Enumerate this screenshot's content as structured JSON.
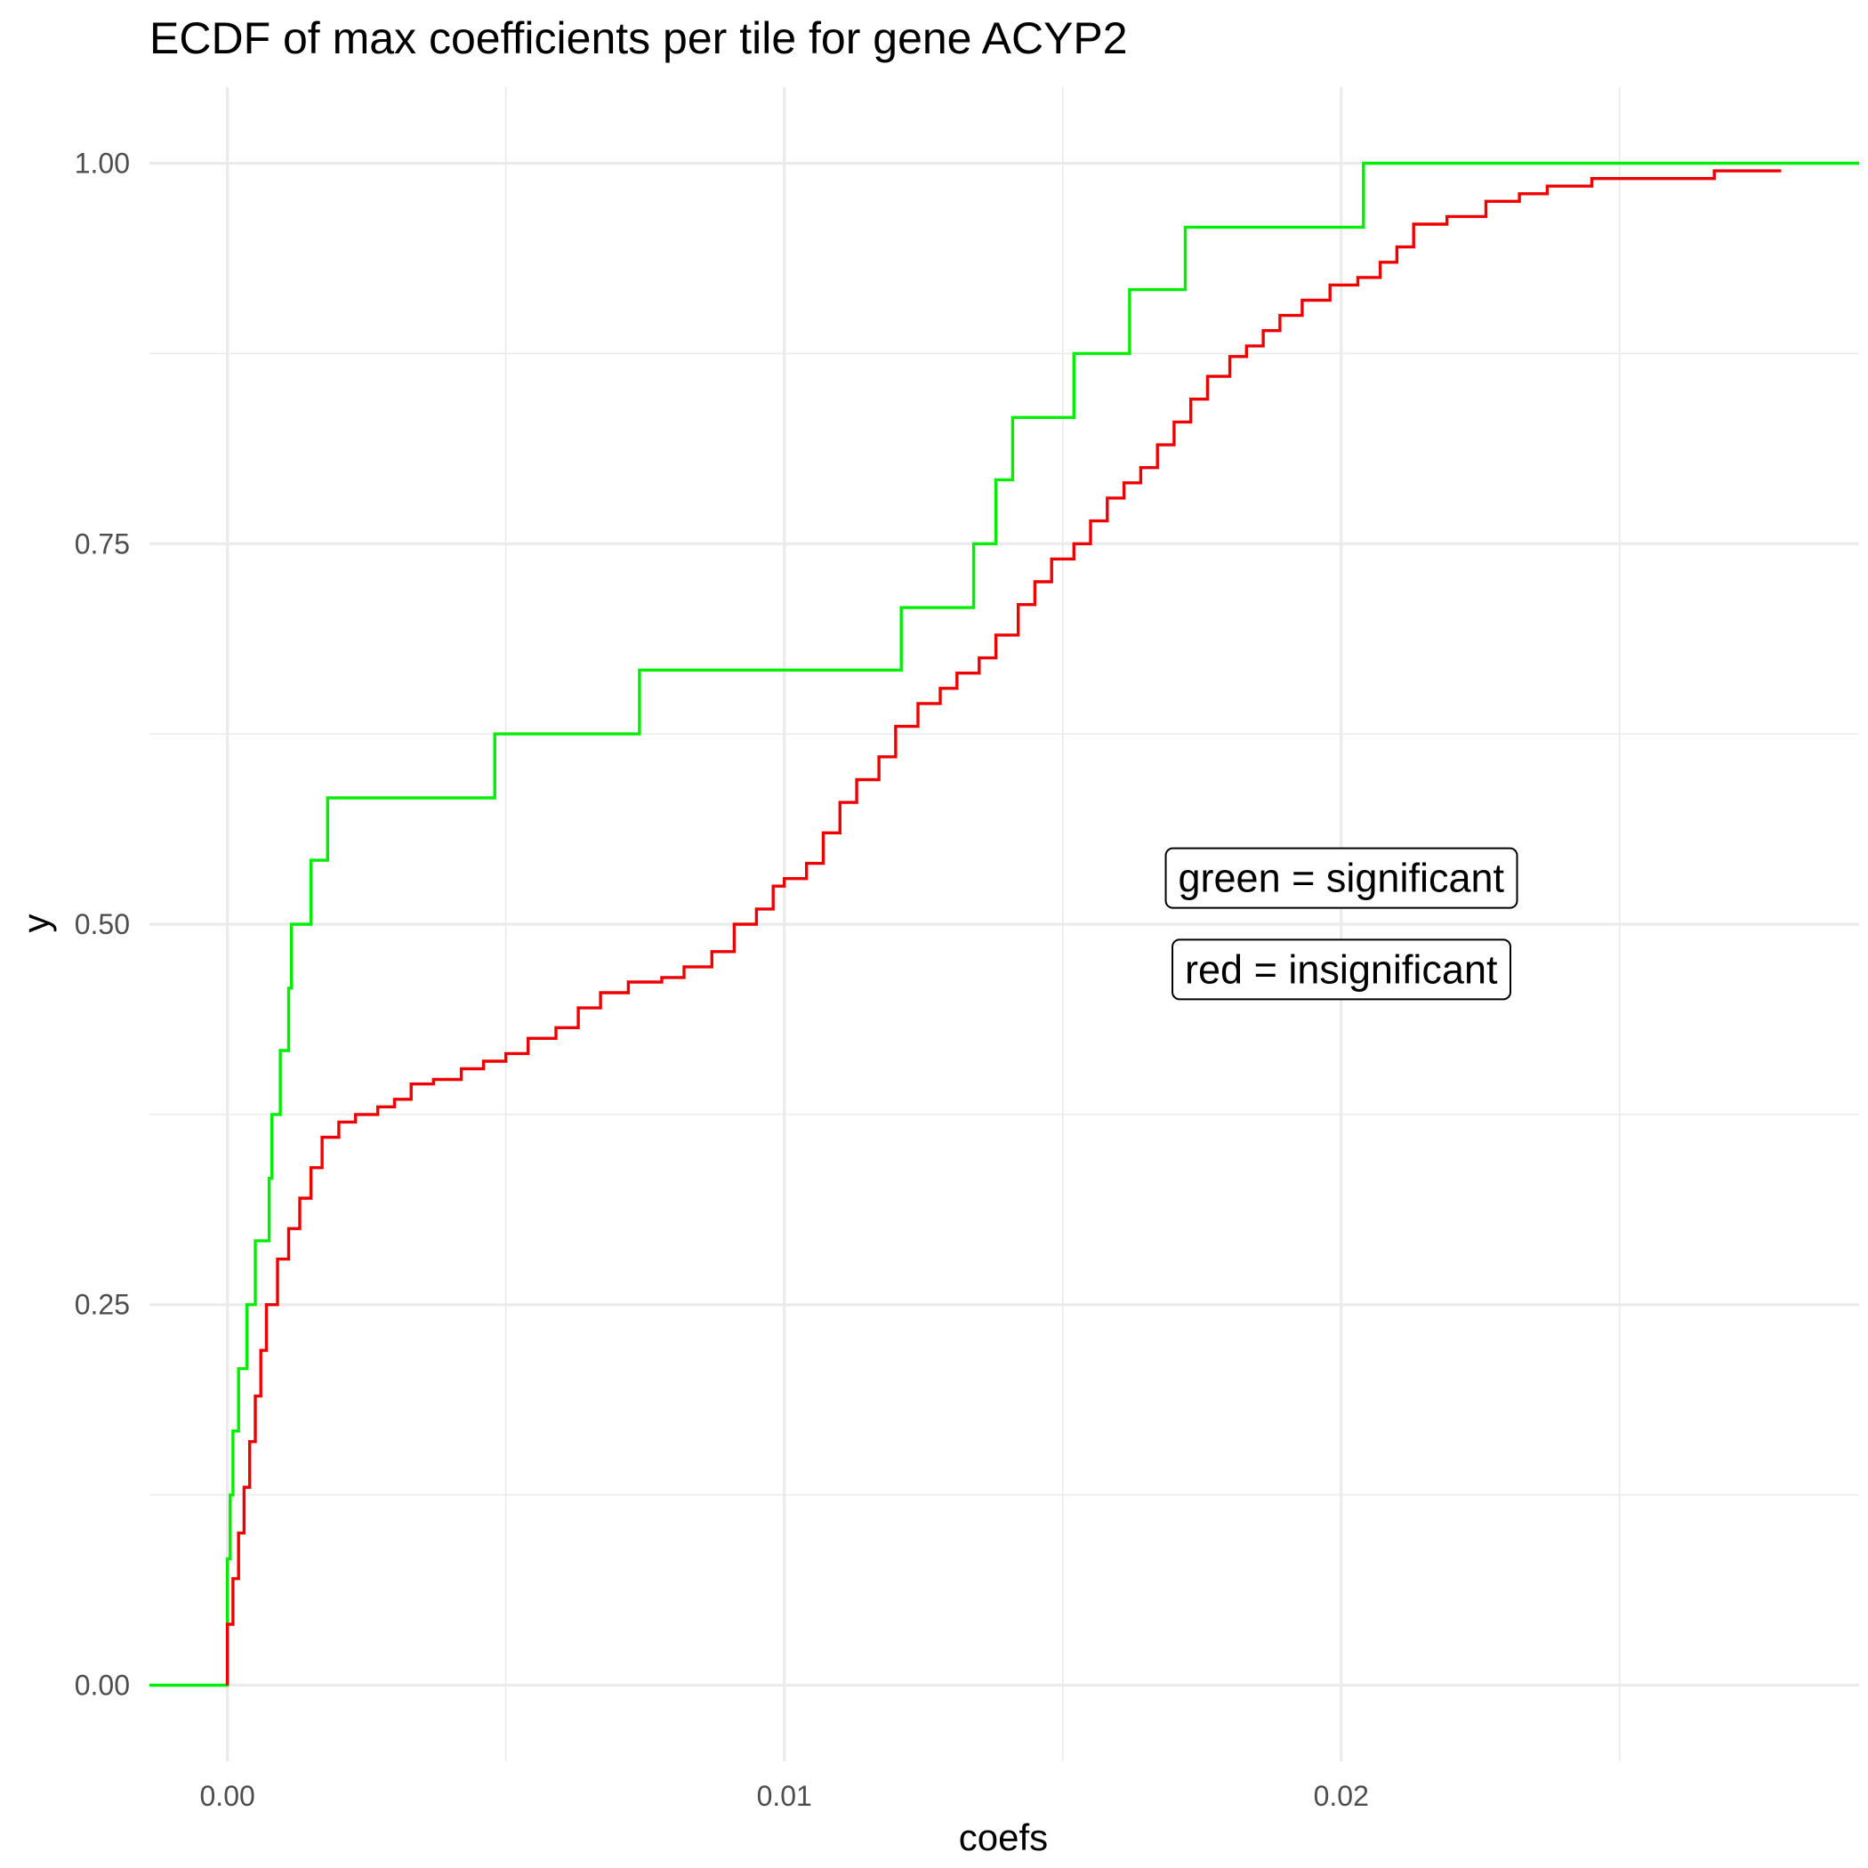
{
  "chart_data": {
    "type": "line",
    "title": "ECDF of max coefficients per tile for gene ACYP2",
    "xlabel": "coefs",
    "ylabel": "y",
    "xlim": [
      -0.0014,
      0.0293
    ],
    "ylim": [
      -0.05,
      1.05
    ],
    "x_ticks": [
      0.0,
      0.01,
      0.02
    ],
    "x_tick_labels": [
      "0.00",
      "0.01",
      "0.02"
    ],
    "y_ticks": [
      0.0,
      0.25,
      0.5,
      0.75,
      1.0
    ],
    "y_tick_labels": [
      "0.00",
      "0.25",
      "0.50",
      "0.75",
      "1.00"
    ],
    "grid": true,
    "legend": "none",
    "series": [
      {
        "color": "#00ee00",
        "step": true,
        "points": [
          [
            -0.0014,
            0.0
          ],
          [
            0.0,
            0.0
          ],
          [
            0.0,
            0.083
          ],
          [
            5e-05,
            0.125
          ],
          [
            0.0001,
            0.167
          ],
          [
            0.0002,
            0.208
          ],
          [
            0.00035,
            0.25
          ],
          [
            0.0005,
            0.292
          ],
          [
            0.00075,
            0.333
          ],
          [
            0.0008,
            0.375
          ],
          [
            0.00095,
            0.417
          ],
          [
            0.0011,
            0.458
          ],
          [
            0.00115,
            0.5
          ],
          [
            0.0015,
            0.542
          ],
          [
            0.0018,
            0.583
          ],
          [
            0.0048,
            0.625
          ],
          [
            0.0074,
            0.667
          ],
          [
            0.0121,
            0.708
          ],
          [
            0.0134,
            0.75
          ],
          [
            0.0138,
            0.792
          ],
          [
            0.0141,
            0.833
          ],
          [
            0.0152,
            0.875
          ],
          [
            0.0162,
            0.917
          ],
          [
            0.0172,
            0.958
          ],
          [
            0.0204,
            1.0
          ],
          [
            0.0293,
            1.0
          ]
        ]
      },
      {
        "color": "#ee0000",
        "step": true,
        "points": [
          [
            0.0,
            0.0
          ],
          [
            0.0,
            0.04
          ],
          [
            0.0001,
            0.07
          ],
          [
            0.0002,
            0.1
          ],
          [
            0.0003,
            0.13
          ],
          [
            0.0004,
            0.16
          ],
          [
            0.0005,
            0.19
          ],
          [
            0.0006,
            0.22
          ],
          [
            0.0007,
            0.25
          ],
          [
            0.0009,
            0.28
          ],
          [
            0.0011,
            0.3
          ],
          [
            0.0013,
            0.32
          ],
          [
            0.0015,
            0.34
          ],
          [
            0.0017,
            0.36
          ],
          [
            0.002,
            0.37
          ],
          [
            0.0023,
            0.375
          ],
          [
            0.0027,
            0.38
          ],
          [
            0.003,
            0.385
          ],
          [
            0.0033,
            0.395
          ],
          [
            0.0037,
            0.398
          ],
          [
            0.0042,
            0.405
          ],
          [
            0.0046,
            0.41
          ],
          [
            0.005,
            0.415
          ],
          [
            0.0054,
            0.425
          ],
          [
            0.0059,
            0.432
          ],
          [
            0.0063,
            0.445
          ],
          [
            0.0067,
            0.455
          ],
          [
            0.0072,
            0.462
          ],
          [
            0.0078,
            0.465
          ],
          [
            0.0082,
            0.472
          ],
          [
            0.0087,
            0.482
          ],
          [
            0.0091,
            0.5
          ],
          [
            0.0095,
            0.51
          ],
          [
            0.0098,
            0.525
          ],
          [
            0.01,
            0.53
          ],
          [
            0.0104,
            0.54
          ],
          [
            0.0107,
            0.56
          ],
          [
            0.011,
            0.58
          ],
          [
            0.0113,
            0.595
          ],
          [
            0.0117,
            0.61
          ],
          [
            0.012,
            0.63
          ],
          [
            0.0124,
            0.645
          ],
          [
            0.0128,
            0.655
          ],
          [
            0.0131,
            0.665
          ],
          [
            0.0135,
            0.675
          ],
          [
            0.0138,
            0.69
          ],
          [
            0.0142,
            0.71
          ],
          [
            0.0145,
            0.725
          ],
          [
            0.0148,
            0.74
          ],
          [
            0.0152,
            0.75
          ],
          [
            0.0155,
            0.765
          ],
          [
            0.0158,
            0.78
          ],
          [
            0.0161,
            0.79
          ],
          [
            0.0164,
            0.8
          ],
          [
            0.0167,
            0.815
          ],
          [
            0.017,
            0.83
          ],
          [
            0.0173,
            0.845
          ],
          [
            0.0176,
            0.86
          ],
          [
            0.018,
            0.873
          ],
          [
            0.0183,
            0.88
          ],
          [
            0.0186,
            0.89
          ],
          [
            0.0189,
            0.9
          ],
          [
            0.0193,
            0.91
          ],
          [
            0.0198,
            0.92
          ],
          [
            0.0203,
            0.925
          ],
          [
            0.0207,
            0.935
          ],
          [
            0.021,
            0.945
          ],
          [
            0.0213,
            0.96
          ],
          [
            0.0219,
            0.965
          ],
          [
            0.0226,
            0.975
          ],
          [
            0.0232,
            0.98
          ],
          [
            0.0237,
            0.985
          ],
          [
            0.0245,
            0.99
          ],
          [
            0.0267,
            0.995
          ],
          [
            0.0279,
            0.995
          ]
        ]
      }
    ],
    "annotations": [
      {
        "text": "green = significant",
        "x": 0.02,
        "y": 0.53
      },
      {
        "text": "red = insignificant",
        "x": 0.02,
        "y": 0.47
      }
    ]
  }
}
